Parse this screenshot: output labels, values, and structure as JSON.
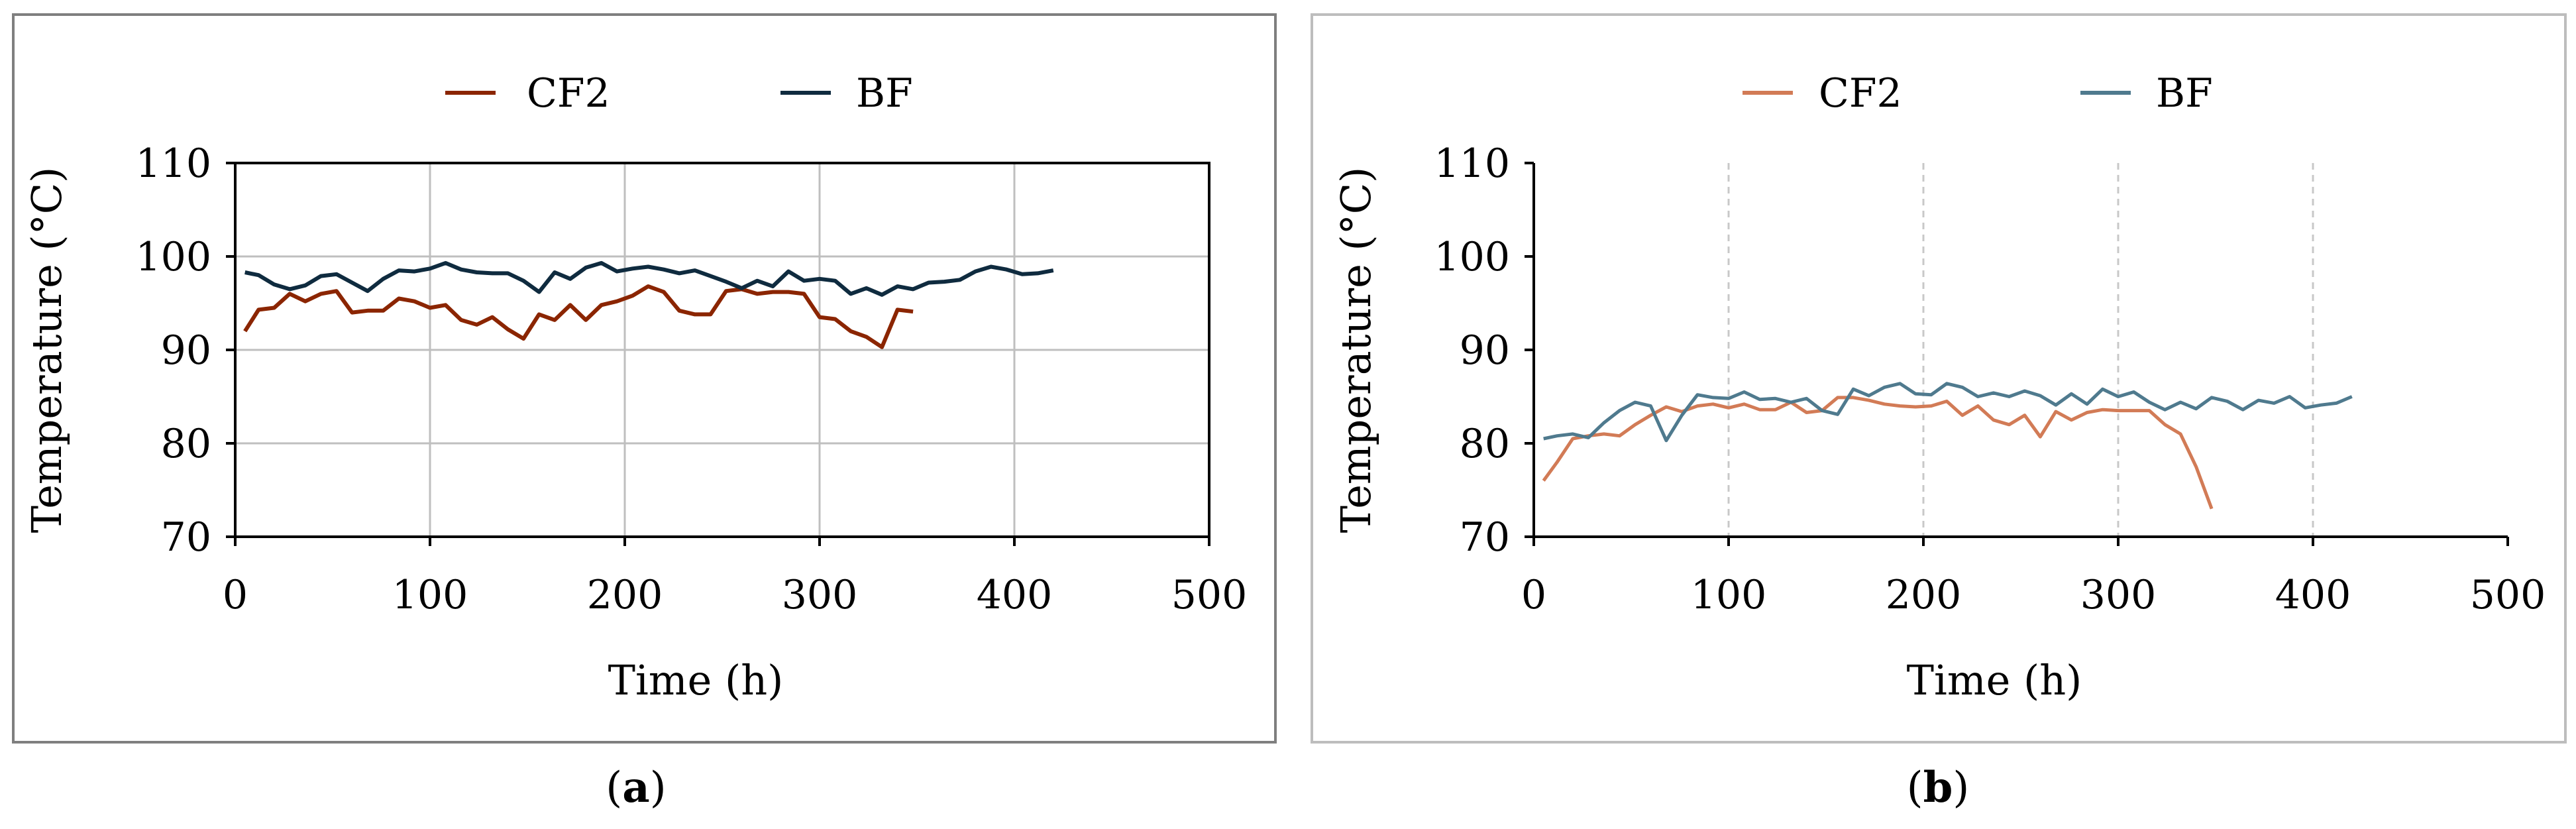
{
  "panels": [
    {
      "caption_letter": "a",
      "style": "box",
      "colors": {
        "CF2": "#8B2500",
        "BF": "#0F2B3F"
      },
      "chart_data": {
        "type": "line",
        "xlabel": "Time  (h)",
        "ylabel": "Temperature (°C)",
        "xlim": [
          0,
          500
        ],
        "ylim": [
          70,
          110
        ],
        "xticks": [
          0,
          100,
          200,
          300,
          400,
          500
        ],
        "yticks": [
          70,
          80,
          90,
          100,
          110
        ],
        "grid": "vertical",
        "legend": "top-center",
        "series": [
          {
            "name": "CF2",
            "x": [
              5,
              12,
              20,
              28,
              36,
              44,
              52,
              60,
              68,
              76,
              84,
              92,
              100,
              108,
              116,
              124,
              132,
              140,
              148,
              156,
              164,
              172,
              180,
              188,
              196,
              204,
              212,
              220,
              228,
              236,
              244,
              252,
              260,
              268,
              276,
              284,
              292,
              300,
              308,
              316,
              324,
              332,
              340,
              348
            ],
            "y": [
              92,
              94.3,
              94.5,
              96,
              95.2,
              96,
              96.3,
              94,
              94.2,
              94.2,
              95.5,
              95.2,
              94.5,
              94.8,
              93.2,
              92.7,
              93.5,
              92.2,
              91.2,
              93.8,
              93.2,
              94.8,
              93.2,
              94.8,
              95.2,
              95.8,
              96.8,
              96.2,
              94.2,
              93.8,
              93.8,
              96.3,
              96.5,
              96,
              96.2,
              96.2,
              96,
              93.5,
              93.3,
              92,
              91.4,
              90.3,
              94.3,
              94.1
            ]
          },
          {
            "name": "BF",
            "x": [
              5,
              12,
              20,
              28,
              36,
              44,
              52,
              60,
              68,
              76,
              84,
              92,
              100,
              108,
              116,
              124,
              132,
              140,
              148,
              156,
              164,
              172,
              180,
              188,
              196,
              204,
              212,
              220,
              228,
              236,
              244,
              252,
              260,
              268,
              276,
              284,
              292,
              300,
              308,
              316,
              324,
              332,
              340,
              348,
              356,
              364,
              372,
              380,
              388,
              396,
              404,
              412,
              420
            ],
            "y": [
              98.3,
              98,
              97,
              96.5,
              96.9,
              97.9,
              98.1,
              97.2,
              96.3,
              97.6,
              98.5,
              98.4,
              98.7,
              99.3,
              98.6,
              98.3,
              98.2,
              98.2,
              97.4,
              96.2,
              98.3,
              97.6,
              98.8,
              99.3,
              98.4,
              98.7,
              98.9,
              98.6,
              98.2,
              98.5,
              97.9,
              97.3,
              96.6,
              97.4,
              96.8,
              98.4,
              97.4,
              97.6,
              97.4,
              96,
              96.6,
              95.9,
              96.8,
              96.5,
              97.2,
              97.3,
              97.5,
              98.4,
              98.9,
              98.6,
              98.1,
              98.2,
              98.5
            ]
          }
        ]
      }
    },
    {
      "caption_letter": "b",
      "style": "plain",
      "colors": {
        "CF2": "#D27B56",
        "BF": "#4F7A8E"
      },
      "chart_data": {
        "type": "line",
        "xlabel": "Time  (h)",
        "ylabel": "Temperature (°C)",
        "xlim": [
          0,
          500
        ],
        "ylim": [
          70,
          110
        ],
        "xticks": [
          0,
          100,
          200,
          300,
          400,
          500
        ],
        "yticks": [
          70,
          80,
          90,
          100,
          110
        ],
        "grid": "vertical dashed",
        "legend": "top-center",
        "series": [
          {
            "name": "CF2",
            "x": [
              5,
              12,
              20,
              28,
              36,
              44,
              52,
              60,
              68,
              76,
              84,
              92,
              100,
              108,
              116,
              124,
              132,
              140,
              148,
              156,
              164,
              172,
              180,
              188,
              196,
              204,
              212,
              220,
              228,
              236,
              244,
              252,
              260,
              268,
              276,
              284,
              292,
              300,
              308,
              316,
              324,
              332,
              340,
              348
            ],
            "y": [
              76,
              78,
              80.5,
              80.8,
              81,
              80.8,
              82,
              83,
              83.9,
              83.4,
              84,
              84.2,
              83.8,
              84.2,
              83.6,
              83.6,
              84.4,
              83.3,
              83.5,
              84.9,
              84.9,
              84.6,
              84.2,
              84,
              83.9,
              84,
              84.5,
              83,
              84,
              82.5,
              82,
              83,
              80.7,
              83.4,
              82.5,
              83.3,
              83.6,
              83.5,
              83.5,
              83.5,
              82,
              81,
              77.5,
              73
            ]
          },
          {
            "name": "BF",
            "x": [
              5,
              12,
              20,
              28,
              36,
              44,
              52,
              60,
              68,
              76,
              84,
              92,
              100,
              108,
              116,
              124,
              132,
              140,
              148,
              156,
              164,
              172,
              180,
              188,
              196,
              204,
              212,
              220,
              228,
              236,
              244,
              252,
              260,
              268,
              276,
              284,
              292,
              300,
              308,
              316,
              324,
              332,
              340,
              348,
              356,
              364,
              372,
              380,
              388,
              396,
              404,
              412,
              420
            ],
            "y": [
              80.5,
              80.8,
              81,
              80.6,
              82.2,
              83.5,
              84.4,
              84,
              80.3,
              83,
              85.2,
              84.9,
              84.8,
              85.5,
              84.7,
              84.8,
              84.4,
              84.8,
              83.5,
              83.1,
              85.8,
              85.1,
              86,
              86.4,
              85.3,
              85.2,
              86.4,
              86,
              85,
              85.4,
              85,
              85.6,
              85.1,
              84.1,
              85.3,
              84.2,
              85.8,
              85,
              85.5,
              84.4,
              83.6,
              84.4,
              83.7,
              84.9,
              84.5,
              83.6,
              84.6,
              84.3,
              85,
              83.8,
              84.1,
              84.3,
              85
            ]
          }
        ]
      }
    }
  ]
}
